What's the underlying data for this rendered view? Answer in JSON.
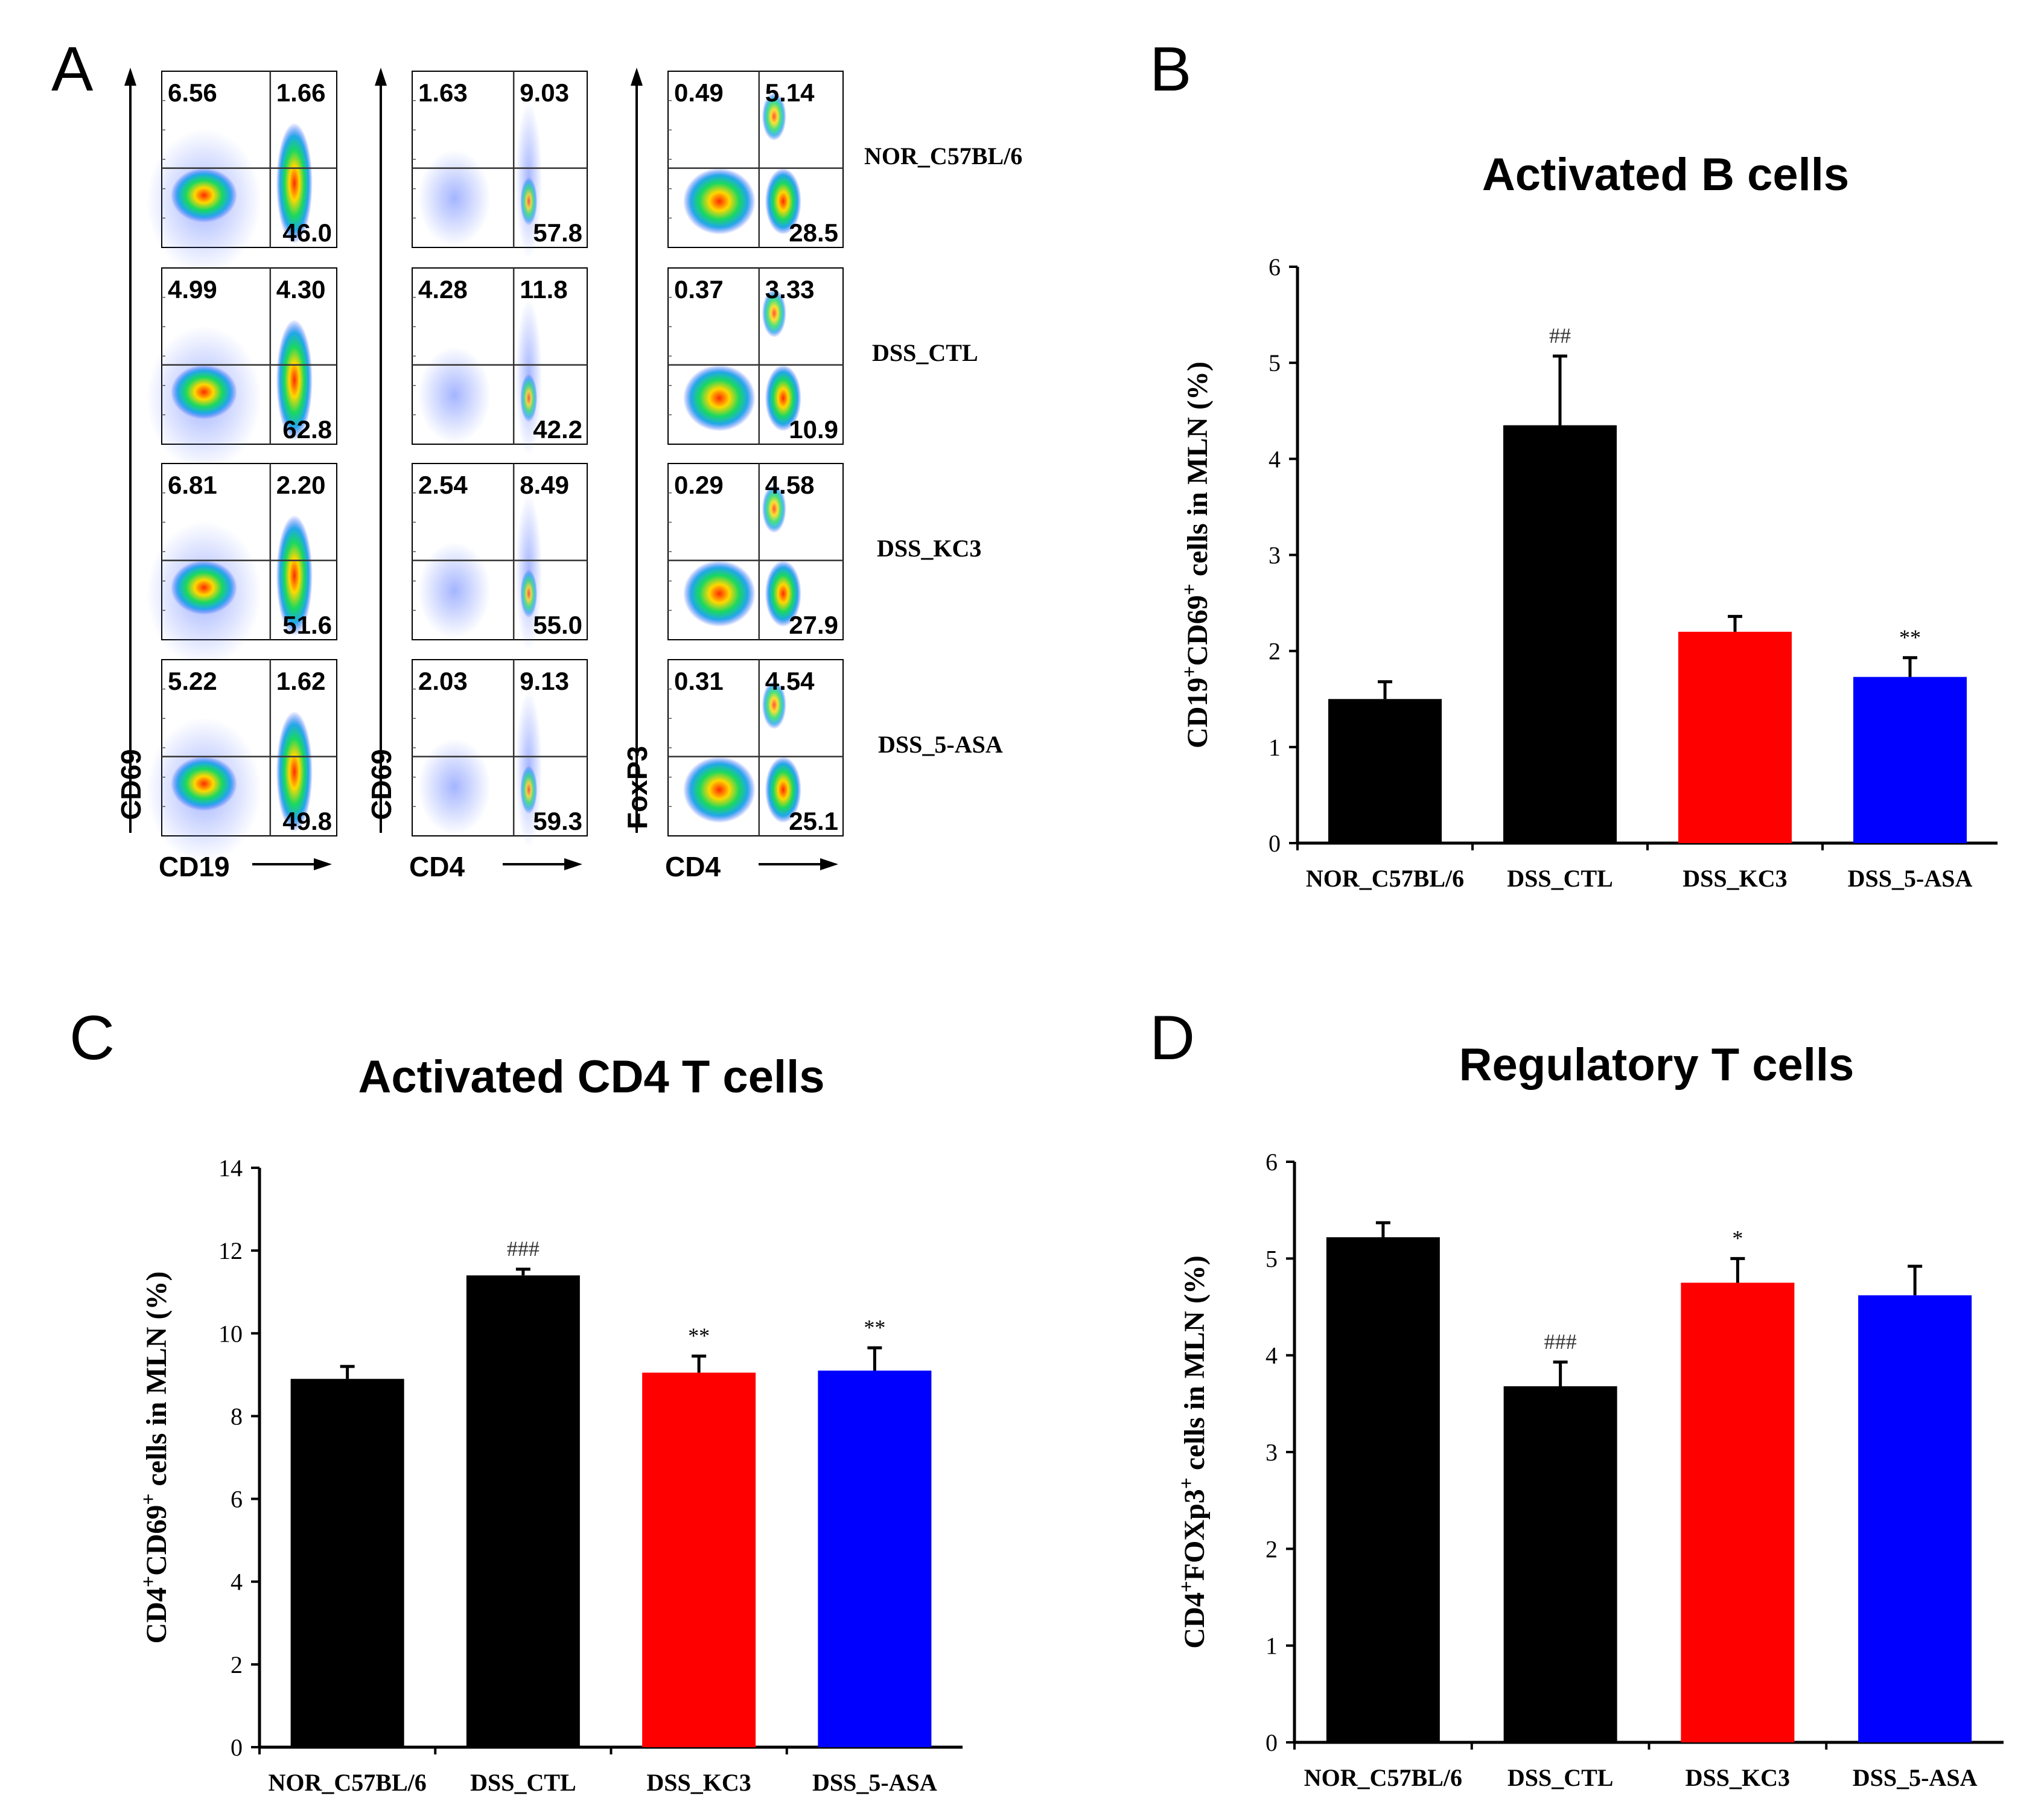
{
  "figure": {
    "panel_labels": [
      "A",
      "B",
      "C",
      "D"
    ]
  },
  "flow": {
    "groups": [
      "NOR_C57BL/6",
      "DSS_CTL",
      "DSS_KC3",
      "DSS_5-ASA"
    ],
    "columns": [
      {
        "x_label": "CD19",
        "y_label": "CD69",
        "rows": [
          {
            "ul": "6.56",
            "ur": "1.66",
            "lr": "46.0"
          },
          {
            "ul": "4.99",
            "ur": "4.30",
            "lr": "62.8"
          },
          {
            "ul": "6.81",
            "ur": "2.20",
            "lr": "51.6"
          },
          {
            "ul": "5.22",
            "ur": "1.62",
            "lr": "49.8"
          }
        ]
      },
      {
        "x_label": "CD4",
        "y_label": "CD69",
        "rows": [
          {
            "ul": "1.63",
            "ur": "9.03",
            "lr": "57.8"
          },
          {
            "ul": "4.28",
            "ur": "11.8",
            "lr": "42.2"
          },
          {
            "ul": "2.54",
            "ur": "8.49",
            "lr": "55.0"
          },
          {
            "ul": "2.03",
            "ur": "9.13",
            "lr": "59.3"
          }
        ]
      },
      {
        "x_label": "CD4",
        "y_label": "FoxP3",
        "rows": [
          {
            "ul": "0.49",
            "ur": "5.14",
            "lr": "28.5"
          },
          {
            "ul": "0.37",
            "ur": "3.33",
            "lr": "10.9"
          },
          {
            "ul": "0.29",
            "ur": "4.58",
            "lr": "27.9"
          },
          {
            "ul": "0.31",
            "ur": "4.54",
            "lr": "25.1"
          }
        ]
      }
    ]
  },
  "chart_data": [
    {
      "panel": "B",
      "type": "bar",
      "title": "Activated B cells",
      "ylabel_html": "CD19<tspan baseline-shift=\"super\" font-size=\"70%\">+</tspan>CD69<tspan baseline-shift=\"super\" font-size=\"70%\">+</tspan> cells in MLN (%)",
      "ylabel": "CD19+CD69+ cells in MLN (%)",
      "categories": [
        "NOR_C57BL/6",
        "DSS_CTL",
        "DSS_KC3",
        "DSS_5-ASA"
      ],
      "values": [
        1.5,
        4.35,
        2.2,
        1.73
      ],
      "errors": [
        0.18,
        0.72,
        0.16,
        0.2
      ],
      "annotations": [
        "",
        "##",
        "",
        "**"
      ],
      "colors": [
        "#000000",
        "#000000",
        "#ff0000",
        "#0000ff"
      ],
      "ylim": [
        0,
        6
      ],
      "yticks": [
        0,
        1,
        2,
        3,
        4,
        5,
        6
      ]
    },
    {
      "panel": "C",
      "type": "bar",
      "title": "Activated CD4 T cells",
      "ylabel": "CD4+CD69+ cells in MLN (%)",
      "categories": [
        "NOR_C57BL/6",
        "DSS_CTL",
        "DSS_KC3",
        "DSS_5-ASA"
      ],
      "values": [
        8.9,
        11.4,
        9.05,
        9.1
      ],
      "errors": [
        0.3,
        0.15,
        0.4,
        0.55
      ],
      "annotations": [
        "",
        "###",
        "**",
        "**"
      ],
      "colors": [
        "#000000",
        "#000000",
        "#ff0000",
        "#0000ff"
      ],
      "ylim": [
        0,
        14
      ],
      "yticks": [
        0,
        2,
        4,
        6,
        8,
        10,
        12,
        14
      ]
    },
    {
      "panel": "D",
      "type": "bar",
      "title": "Regulatory T cells",
      "ylabel": "CD4+FOXp3+ cells in MLN (%)",
      "categories": [
        "NOR_C57BL/6",
        "DSS_CTL",
        "DSS_KC3",
        "DSS_5-ASA"
      ],
      "values": [
        5.22,
        3.68,
        4.75,
        4.62
      ],
      "errors": [
        0.15,
        0.25,
        0.25,
        0.3
      ],
      "annotations": [
        "",
        "###",
        "*",
        ""
      ],
      "colors": [
        "#000000",
        "#000000",
        "#ff0000",
        "#0000ff"
      ],
      "ylim": [
        0,
        6
      ],
      "yticks": [
        0,
        1,
        2,
        3,
        4,
        5,
        6
      ]
    }
  ]
}
